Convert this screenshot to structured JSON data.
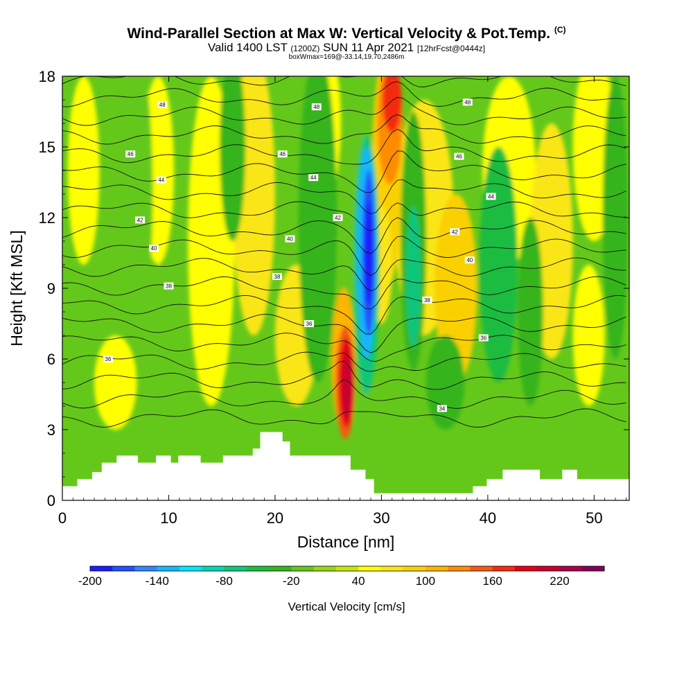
{
  "header": {
    "title": "Wind-Parallel Section at Max W: Vertical Velocity & Pot.Temp.",
    "copyright": "(C)",
    "valid_prefix": "Valid 1400 LST",
    "valid_utc": "(1200Z)",
    "valid_date": "SUN 11 Apr 2021",
    "forecast": "[12hrFcst@0444z]",
    "box_info": "boxWmax=169@-33.14,19.70,2486m"
  },
  "chart_data": {
    "type": "contour-cross-section",
    "xlabel": "Distance [nm]",
    "ylabel": "Height [Kft MSL]",
    "xlim": [
      0,
      53.3
    ],
    "ylim": [
      0,
      18
    ],
    "x_ticks": [
      0,
      10,
      20,
      30,
      40,
      50
    ],
    "y_ticks": [
      0,
      3,
      6,
      9,
      12,
      15,
      18
    ],
    "colorbar": {
      "label": "Vertical Velocity [cm/s]",
      "tick_labels": [
        -200,
        -140,
        -80,
        -20,
        40,
        100,
        160,
        220
      ],
      "levels": [
        -200,
        -180,
        -160,
        -140,
        -120,
        -100,
        -80,
        -60,
        -40,
        -20,
        0,
        20,
        40,
        60,
        80,
        100,
        120,
        140,
        160,
        180,
        200,
        220,
        240
      ],
      "colors": [
        "#1c1cff",
        "#2350ff",
        "#2f86ff",
        "#16b6ff",
        "#00e6ff",
        "#00d6b4",
        "#10c67c",
        "#1cbc40",
        "#34b41e",
        "#64c81a",
        "#96d814",
        "#c4e80a",
        "#ffff00",
        "#fae614",
        "#fad000",
        "#ffb400",
        "#ff8c00",
        "#f55a10",
        "#f52a10",
        "#e60014",
        "#c8002e",
        "#aa0046",
        "#82005a"
      ]
    },
    "velocity_features": [
      {
        "kind": "downdraft",
        "x_center": 28.5,
        "height_kft": 10,
        "min_cms": -200
      },
      {
        "kind": "updraft",
        "x_center": 30.5,
        "height_kft": 16,
        "max_cms": 160
      },
      {
        "kind": "updraft",
        "x_center": 26.5,
        "height_kft": 5,
        "max_cms": 200
      }
    ],
    "theta_contours": [
      34,
      36,
      38,
      40,
      42,
      44,
      46,
      48
    ],
    "theta_labels": [
      {
        "text": "48",
        "x": 9.4,
        "y": 16.8
      },
      {
        "text": "48",
        "x": 23.9,
        "y": 16.7
      },
      {
        "text": "48",
        "x": 38.1,
        "y": 16.9
      },
      {
        "text": "46",
        "x": 6.4,
        "y": 14.7
      },
      {
        "text": "46",
        "x": 20.7,
        "y": 14.7
      },
      {
        "text": "46",
        "x": 37.3,
        "y": 14.6
      },
      {
        "text": "44",
        "x": 9.3,
        "y": 13.6
      },
      {
        "text": "44",
        "x": 23.6,
        "y": 13.7
      },
      {
        "text": "44",
        "x": 40.3,
        "y": 12.9
      },
      {
        "text": "42",
        "x": 7.3,
        "y": 11.9
      },
      {
        "text": "42",
        "x": 25.9,
        "y": 12.0
      },
      {
        "text": "42",
        "x": 36.9,
        "y": 11.4
      },
      {
        "text": "40",
        "x": 8.6,
        "y": 10.7
      },
      {
        "text": "40",
        "x": 21.4,
        "y": 11.1
      },
      {
        "text": "40",
        "x": 38.3,
        "y": 10.2
      },
      {
        "text": "38",
        "x": 10.0,
        "y": 9.1
      },
      {
        "text": "38",
        "x": 20.2,
        "y": 9.5
      },
      {
        "text": "38",
        "x": 34.3,
        "y": 8.5
      },
      {
        "text": "36",
        "x": 4.3,
        "y": 6.0
      },
      {
        "text": "36",
        "x": 23.2,
        "y": 7.5
      },
      {
        "text": "36",
        "x": 39.6,
        "y": 6.9
      },
      {
        "text": "34",
        "x": 35.7,
        "y": 3.9
      }
    ],
    "terrain": [
      {
        "x": 0.0,
        "h": 0.6
      },
      {
        "x": 1.4,
        "h": 0.9
      },
      {
        "x": 2.8,
        "h": 1.2
      },
      {
        "x": 3.7,
        "h": 1.6
      },
      {
        "x": 5.1,
        "h": 1.9
      },
      {
        "x": 7.1,
        "h": 1.6
      },
      {
        "x": 8.8,
        "h": 1.9
      },
      {
        "x": 10.2,
        "h": 1.6
      },
      {
        "x": 10.9,
        "h": 1.9
      },
      {
        "x": 13.0,
        "h": 1.6
      },
      {
        "x": 15.1,
        "h": 1.9
      },
      {
        "x": 17.9,
        "h": 2.2
      },
      {
        "x": 18.6,
        "h": 2.9
      },
      {
        "x": 20.7,
        "h": 2.5
      },
      {
        "x": 21.4,
        "h": 1.9
      },
      {
        "x": 27.1,
        "h": 1.3
      },
      {
        "x": 28.5,
        "h": 0.9
      },
      {
        "x": 29.3,
        "h": 0.3
      },
      {
        "x": 38.6,
        "h": 0.6
      },
      {
        "x": 39.9,
        "h": 0.9
      },
      {
        "x": 41.4,
        "h": 1.3
      },
      {
        "x": 44.9,
        "h": 0.9
      },
      {
        "x": 47.0,
        "h": 1.3
      },
      {
        "x": 48.4,
        "h": 0.9
      },
      {
        "x": 53.3,
        "h": 1.0
      }
    ]
  }
}
